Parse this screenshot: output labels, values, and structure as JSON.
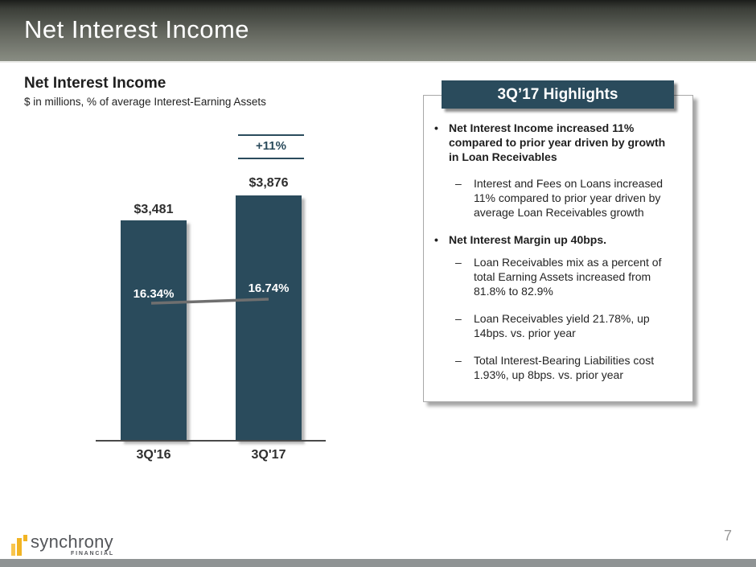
{
  "slide": {
    "title": "Net Interest Income"
  },
  "chart": {
    "title": "Net Interest Income",
    "subtitle": "$ in millions, % of average Interest-Earning Assets",
    "growth_label": "+11%",
    "bars": [
      {
        "category": "3Q'16",
        "value_label": "$3,481",
        "pct_label": "16.34%"
      },
      {
        "category": "3Q'17",
        "value_label": "$3,876",
        "pct_label": "16.74%"
      }
    ]
  },
  "chart_data": {
    "type": "bar",
    "title": "Net Interest Income",
    "subtitle": "$ in millions, % of average Interest-Earning Assets",
    "categories": [
      "3Q'16",
      "3Q'17"
    ],
    "series": [
      {
        "name": "Net Interest Income ($ millions)",
        "type": "bar",
        "values": [
          3481,
          3876
        ]
      },
      {
        "name": "% of average Interest-Earning Assets",
        "type": "line",
        "values": [
          16.34,
          16.74
        ]
      }
    ],
    "annotations": [
      {
        "label": "+11%",
        "target": "3Q'17",
        "meaning": "growth vs prior year"
      }
    ],
    "xlabel": "",
    "ylabel": "",
    "yaxis_visible": false,
    "grid": false,
    "legend_position": "none"
  },
  "highlights": {
    "title": "3Q’17 Highlights",
    "bullet_marker": "•",
    "dash_marker": "–",
    "items": [
      {
        "level": 1,
        "bold": true,
        "text": "Net Interest Income increased 11%\ncompared to prior year driven by growth\nin Loan Receivables"
      },
      {
        "level": 2,
        "bold": false,
        "text": "Interest and Fees on Loans increased\n11% compared to prior year driven by\naverage Loan Receivables growth"
      },
      {
        "level": 1,
        "bold": true,
        "text": "Net Interest Margin up 40bps."
      },
      {
        "level": 2,
        "bold": false,
        "text": "Loan Receivables mix as a percent of\ntotal Earning Assets increased from\n81.8% to 82.9%"
      },
      {
        "level": 2,
        "bold": false,
        "text": "Loan Receivables yield 21.78%, up\n14bps. vs. prior year"
      },
      {
        "level": 2,
        "bold": false,
        "text": "Total Interest-Bearing Liabilities cost\n1.93%, up 8bps. vs. prior year"
      }
    ]
  },
  "footer": {
    "logo_text": "synchrony",
    "logo_sub": "FINANCIAL",
    "page_number": "7"
  },
  "colors": {
    "accent_teal": "#2A4B5C",
    "trend_line_gray": "#6F6F6F",
    "logo_gold": "#F1B424",
    "logo_gold_light": "#F8C54E",
    "header_gradient_top": "#1C1D1B",
    "header_gradient_bottom": "#898D83",
    "bottom_bar": "#8F9394"
  }
}
